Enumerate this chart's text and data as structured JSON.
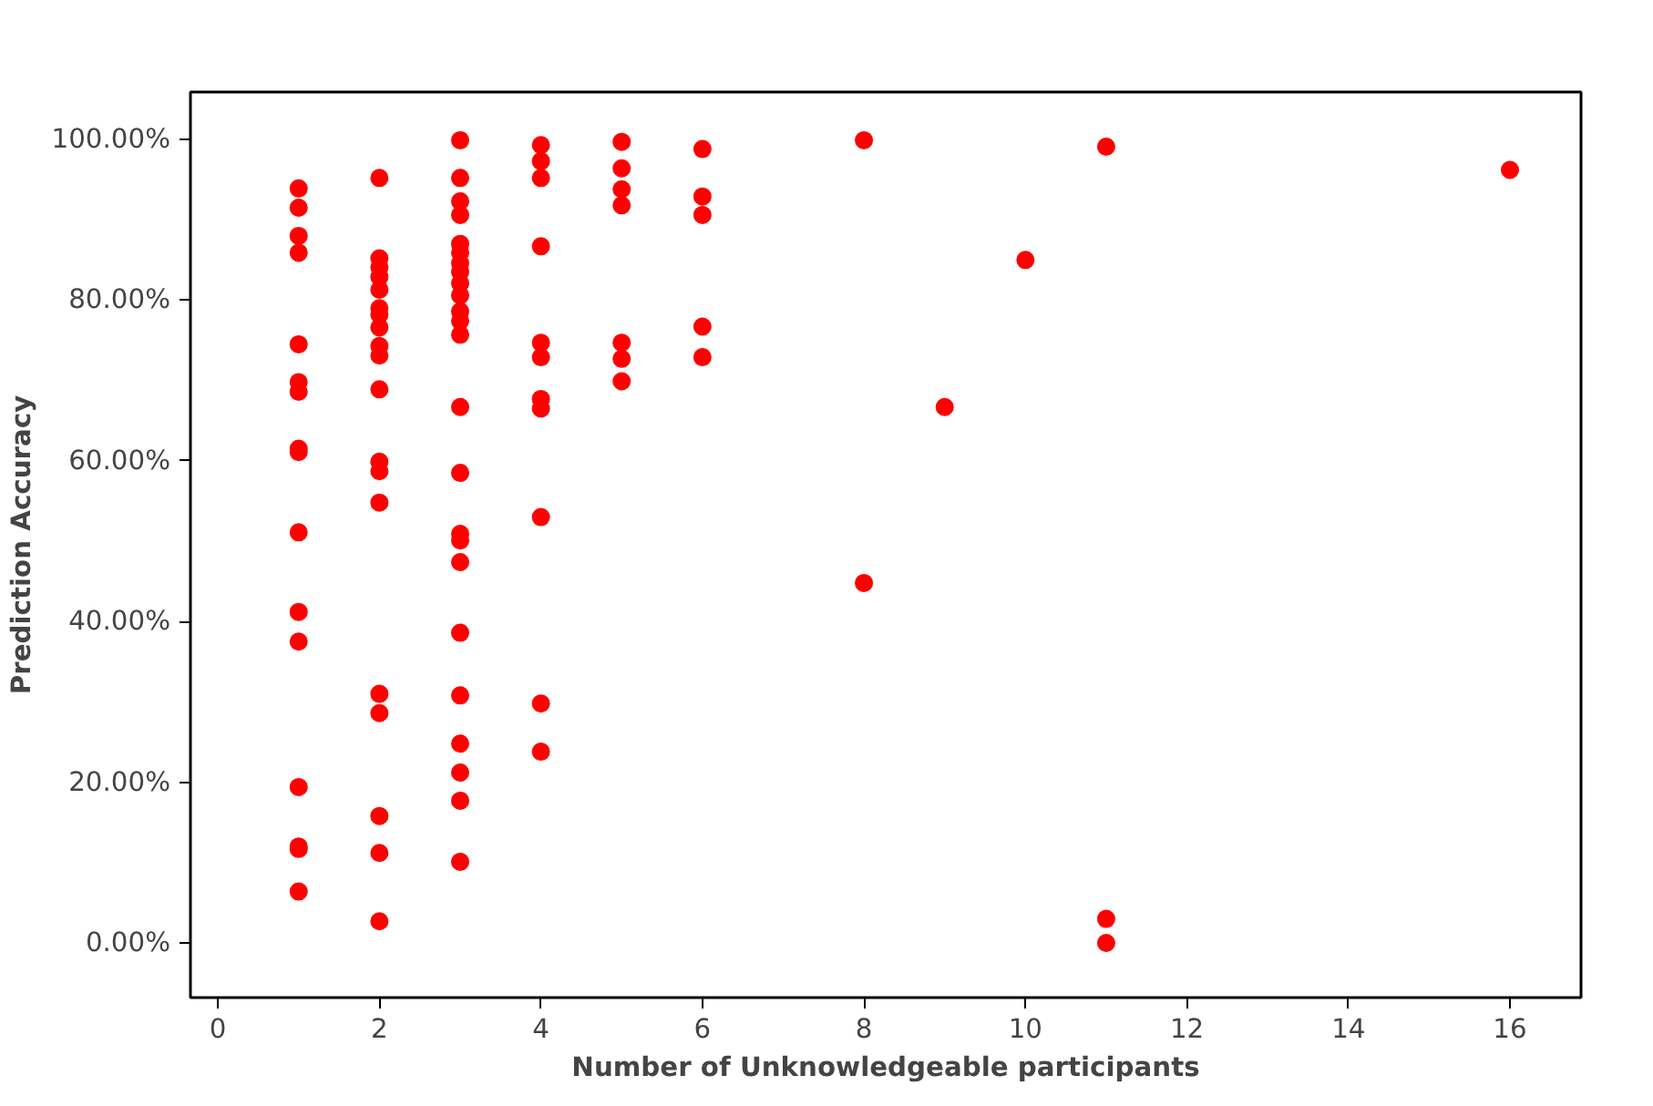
{
  "chart_data": {
    "type": "scatter",
    "xlabel": "Number of Unknowledgeable participants",
    "ylabel": "Prediction Accuracy",
    "xlim": [
      -0.34,
      16.88
    ],
    "ylim": [
      -6.8,
      105.9
    ],
    "xticks": [
      0,
      2,
      4,
      6,
      8,
      10,
      12,
      14,
      16
    ],
    "yticks": [
      {
        "value": 0,
        "label": "0.00%"
      },
      {
        "value": 20,
        "label": "20.00%"
      },
      {
        "value": 40,
        "label": "40.00%"
      },
      {
        "value": 60,
        "label": "60.00%"
      },
      {
        "value": 80,
        "label": "80.00%"
      },
      {
        "value": 100,
        "label": "100.00%"
      }
    ],
    "grid": false,
    "marker": "circle",
    "series": [
      {
        "color": "#ff0000",
        "x": [
          1,
          1,
          1,
          1,
          1,
          1,
          1,
          1,
          1,
          1,
          1,
          1,
          1,
          1,
          1,
          1,
          2,
          2,
          2,
          2,
          2,
          2,
          2,
          2,
          2,
          2,
          2,
          2,
          2,
          2,
          2,
          2,
          2,
          2,
          2,
          3,
          3,
          3,
          3,
          3,
          3,
          3,
          3,
          3,
          3,
          3,
          3,
          3,
          3,
          3,
          3,
          3,
          3,
          3,
          3,
          3,
          3,
          3,
          3,
          4,
          4,
          4,
          4,
          4,
          4,
          4,
          4,
          4,
          4,
          4,
          5,
          5,
          5,
          5,
          5,
          5,
          5,
          6,
          6,
          6,
          6,
          6,
          8,
          8,
          9,
          10,
          11,
          11,
          11,
          16
        ],
        "values": [
          93.9,
          91.5,
          88.0,
          85.9,
          74.5,
          69.8,
          68.6,
          61.5,
          61.1,
          51.1,
          41.2,
          37.5,
          19.4,
          12.0,
          11.7,
          6.4,
          95.2,
          85.2,
          84.1,
          82.9,
          81.3,
          79.0,
          78.2,
          76.6,
          74.3,
          73.1,
          68.9,
          59.9,
          58.7,
          54.8,
          31.0,
          28.6,
          15.8,
          11.2,
          2.7,
          99.9,
          95.2,
          92.3,
          90.6,
          87.0,
          85.9,
          84.6,
          83.5,
          82.1,
          80.6,
          78.6,
          77.4,
          75.7,
          66.7,
          58.5,
          50.9,
          50.1,
          47.4,
          38.6,
          30.8,
          24.8,
          21.2,
          17.7,
          10.1,
          99.3,
          97.3,
          95.2,
          86.7,
          74.7,
          72.9,
          67.7,
          66.5,
          53.0,
          29.8,
          23.8,
          99.7,
          96.4,
          93.8,
          91.8,
          74.7,
          72.7,
          69.9,
          98.8,
          92.9,
          90.6,
          76.7,
          72.9,
          99.9,
          44.8,
          66.7,
          85.0,
          99.1,
          3.0,
          0,
          96.2
        ]
      }
    ]
  }
}
